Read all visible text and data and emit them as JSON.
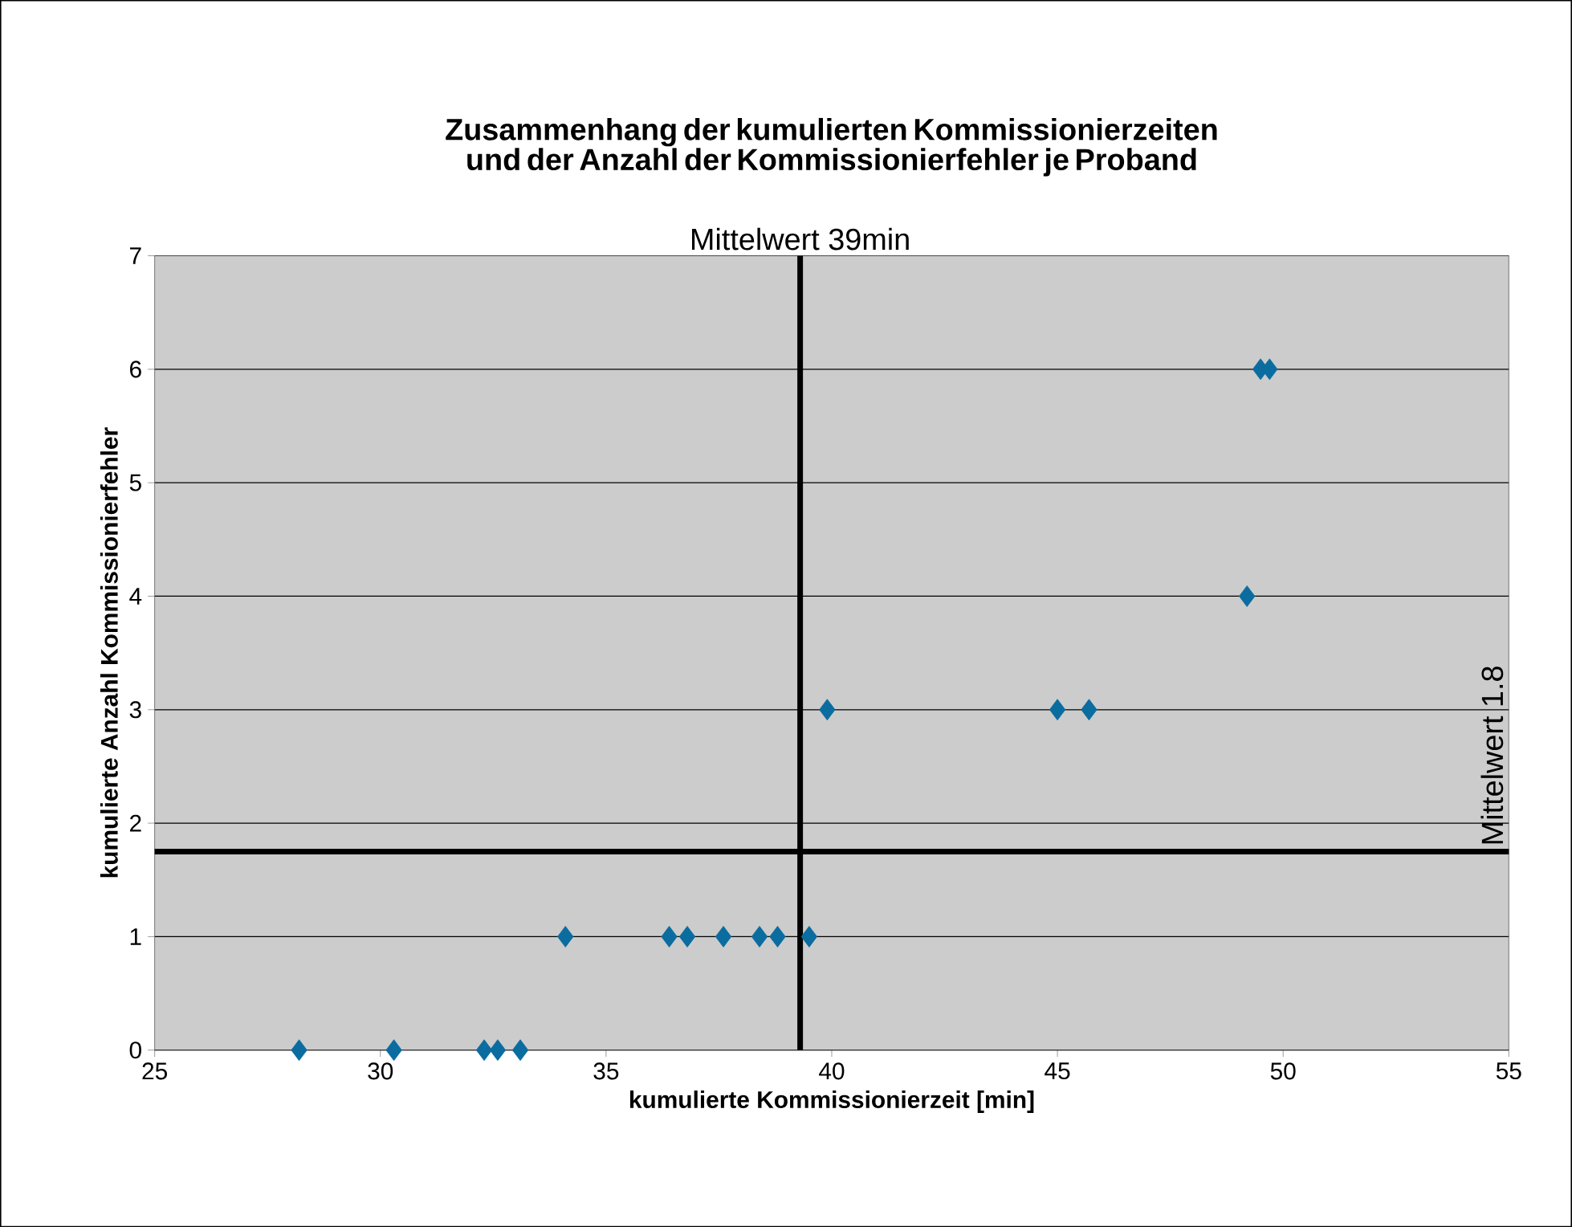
{
  "chart_data": {
    "type": "scatter",
    "title": "Zusammenhang der kumulierten Kommissionierzeiten und der Anzahl der Kommissionierfehler je Proband",
    "xlabel": "kumulierte Kommissionierzeit [min]",
    "ylabel": "kumulierte Anzahl Kommissionierfehler",
    "series": [
      {
        "color": "#0a6c9f",
        "x": [
          28.2,
          30.3,
          32.3,
          32.6,
          33.1,
          34.1,
          36.4,
          36.8,
          37.6,
          38.4,
          38.8,
          39.5,
          39.9,
          45.0,
          45.7,
          49.2,
          49.5,
          49.7
        ],
        "values": [
          0,
          0,
          0,
          0,
          0,
          1,
          1,
          1,
          1,
          1,
          1,
          1,
          3,
          3,
          3,
          4,
          6,
          6
        ]
      }
    ],
    "xlim": [
      25,
      55
    ],
    "xticks": [
      25,
      30,
      35,
      40,
      45,
      50,
      55
    ],
    "ylim": [
      0,
      7
    ],
    "yticks": [
      0,
      1,
      2,
      3,
      4,
      5,
      6,
      7
    ],
    "grid": "y",
    "marker": "diamond",
    "ref_lines": [
      {
        "axis": "x",
        "value": 39.3,
        "label": "Mittelwert 39min",
        "color": "#000000"
      },
      {
        "axis": "y",
        "value": 1.75,
        "label": "Mittelwert 1.8",
        "color": "#000000"
      }
    ]
  }
}
